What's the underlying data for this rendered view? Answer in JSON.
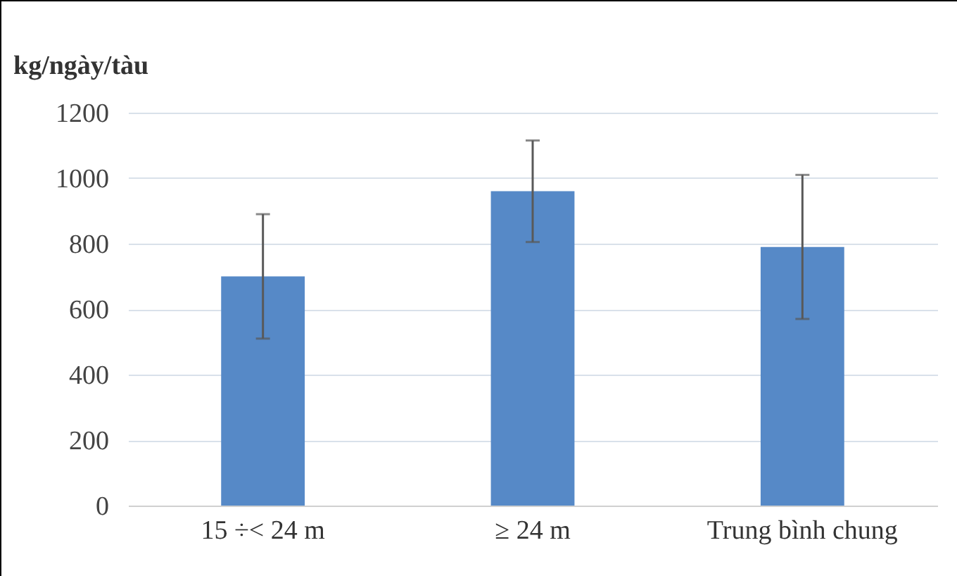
{
  "chart_data": {
    "type": "bar",
    "ylabel": "kg/ngày/tàu",
    "categories": [
      "15 ÷< 24 m",
      "≥ 24 m",
      "Trung bình chung"
    ],
    "series": [
      {
        "color": "#5689c7",
        "values": [
          700,
          960,
          790
        ],
        "errors": [
          190,
          155,
          220
        ]
      }
    ],
    "ylim": [
      0,
      1200
    ],
    "yticks": [
      0,
      200,
      400,
      600,
      800,
      1000,
      1200
    ],
    "grid": "y",
    "legend": false
  }
}
